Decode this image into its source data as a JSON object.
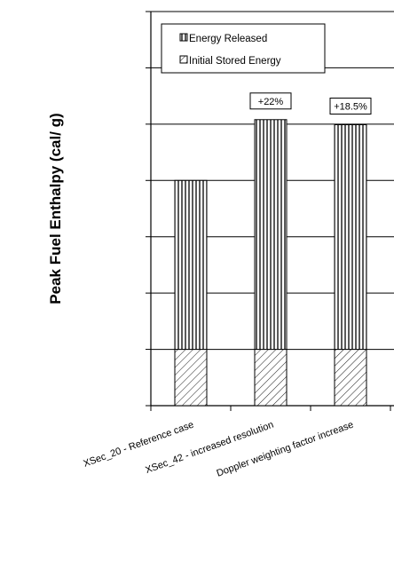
{
  "chart_data": {
    "type": "bar",
    "stacked": true,
    "ylabel": "Peak Fuel Enthalpy (cal/ g)",
    "xlabel": "",
    "title": "",
    "y_tick_labels_shown": false,
    "grid": "horizontal",
    "legend_placement": "top-left",
    "categories": [
      "XSec_20 - Reference case",
      "XSec_42 - increased resolution",
      "Doppler weighting factor increase"
    ],
    "series": [
      {
        "name": "Initial Stored Energy",
        "pattern": "diagonal-hatch",
        "values": [
          1.0,
          1.0,
          1.0
        ]
      },
      {
        "name": "Energy Released",
        "pattern": "vertical-stripes",
        "values": [
          3.0,
          4.08,
          3.99
        ]
      }
    ],
    "annotations": [
      {
        "category_index": 1,
        "text": "+22%"
      },
      {
        "category_index": 2,
        "text": "+18.5%"
      }
    ],
    "ylim": [
      0,
      7
    ],
    "colors": {
      "bar_stroke": "#000000",
      "background": "#ffffff"
    }
  }
}
